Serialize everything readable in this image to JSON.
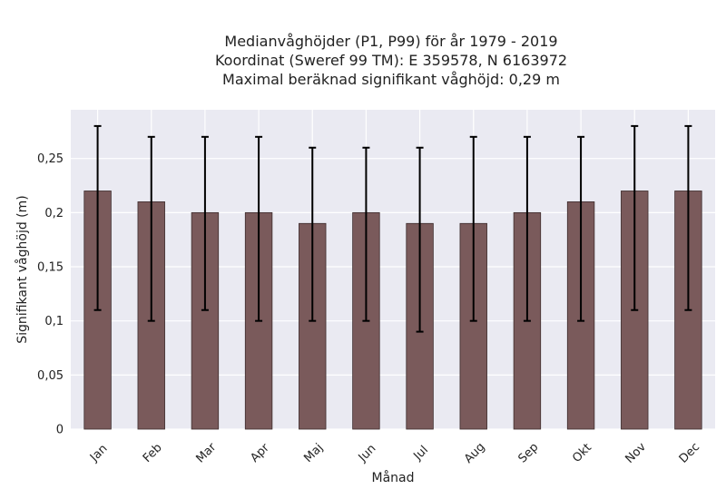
{
  "chart_data": {
    "type": "bar",
    "title_lines": [
      "Medianvåghöjder (P1, P99) för år 1979 - 2019",
      "Koordinat (Sweref 99 TM): E 359578, N 6163972",
      "Maximal beräknad signifikant våghöjd: 0,29 m"
    ],
    "xlabel": "Månad",
    "ylabel": "Signifikant våghöjd (m)",
    "categories": [
      "Jan",
      "Feb",
      "Mar",
      "Apr",
      "Maj",
      "Jun",
      "Jul",
      "Aug",
      "Sep",
      "Okt",
      "Nov",
      "Dec"
    ],
    "series": [
      {
        "values": [
          0.22,
          0.21,
          0.2,
          0.2,
          0.19,
          0.2,
          0.19,
          0.19,
          0.2,
          0.21,
          0.22,
          0.22
        ],
        "p1": [
          0.11,
          0.1,
          0.11,
          0.1,
          0.1,
          0.1,
          0.09,
          0.1,
          0.1,
          0.1,
          0.11,
          0.11
        ],
        "p99": [
          0.28,
          0.27,
          0.27,
          0.27,
          0.26,
          0.26,
          0.26,
          0.27,
          0.27,
          0.27,
          0.28,
          0.28
        ]
      }
    ],
    "ylim": [
      0,
      0.295
    ],
    "yticks": [
      0,
      0.05,
      0.1,
      0.15,
      0.2,
      0.25
    ],
    "ytick_labels": [
      "0",
      "0,05",
      "0,1",
      "0,15",
      "0,2",
      "0,25"
    ],
    "grid": true,
    "colors": {
      "bar": "#7a5a5b",
      "bar_edge": "#3d2c2d",
      "error_bar": "#000000",
      "plot_background": "#eaeaf2",
      "grid": "#ffffff"
    }
  }
}
